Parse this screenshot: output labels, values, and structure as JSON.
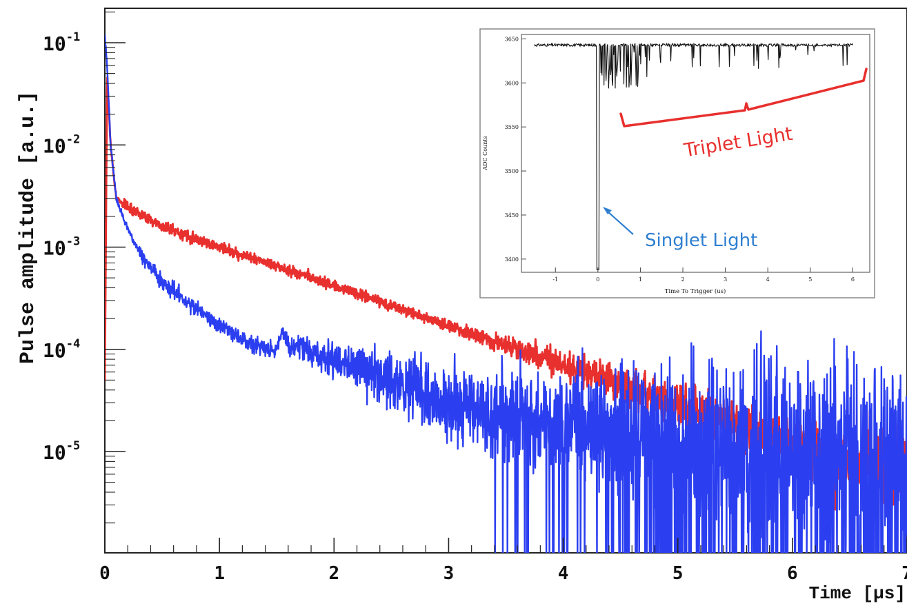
{
  "chart_data": [
    {
      "type": "line",
      "title": "",
      "xlabel": "Time [µs]",
      "ylabel": "Pulse amplitude [a.u.]",
      "xlim": [
        0,
        7
      ],
      "ylim": [
        1e-06,
        0.2
      ],
      "yscale": "log",
      "grid": false,
      "x_ticks": [
        0,
        1,
        2,
        3,
        4,
        5,
        6,
        7
      ],
      "x_tick_labels": [
        "0",
        "1",
        "2",
        "3",
        "4",
        "5",
        "6",
        "7"
      ],
      "y_ticks": [
        0.1,
        0.01,
        0.001,
        0.0001,
        1e-05
      ],
      "y_tick_labels": [
        {
          "base": "10",
          "exp": "-1"
        },
        {
          "base": "10",
          "exp": "-2"
        },
        {
          "base": "10",
          "exp": "-3"
        },
        {
          "base": "10",
          "exp": "-4"
        },
        {
          "base": "10",
          "exp": "-5"
        }
      ],
      "series": [
        {
          "color": "#e8302e",
          "x": [
            0.0,
            0.02,
            0.05,
            0.1,
            0.2,
            0.5,
            1.0,
            1.5,
            2.0,
            2.5,
            3.0,
            3.5,
            4.0,
            4.5,
            5.0,
            5.5,
            6.0,
            6.5,
            7.0
          ],
          "values": [
            5e-05,
            0.05,
            0.01,
            0.003,
            0.0025,
            0.0016,
            0.001,
            0.00065,
            0.00042,
            0.00027,
            0.00017,
            0.00011,
            7e-05,
            4.5e-05,
            2.8e-05,
            1.8e-05,
            1.2e-05,
            8e-06,
            6e-06
          ]
        },
        {
          "color": "#2b3ff0",
          "x": [
            0.0,
            0.02,
            0.05,
            0.1,
            0.2,
            0.3,
            0.5,
            0.8,
            1.0,
            1.3,
            1.5,
            1.55,
            1.6,
            2.0,
            2.5,
            3.0,
            3.5,
            4.0,
            4.5,
            5.0,
            5.5,
            6.0,
            7.0
          ],
          "values": [
            0.12,
            0.06,
            0.01,
            0.003,
            0.0015,
            0.0009,
            0.00045,
            0.00025,
            0.00017,
            0.00011,
            0.0001,
            0.00016,
            0.00011,
            8e-05,
            5e-05,
            3e-05,
            2.2e-05,
            1.8e-05,
            1.6e-05,
            1.4e-05,
            1.3e-05,
            1.2e-05,
            1.1e-05
          ]
        }
      ]
    },
    {
      "type": "line",
      "title": "",
      "xlabel": "Time To Trigger (us)",
      "ylabel": "ADC Counts",
      "xlim": [
        -1.8,
        6.4
      ],
      "ylim": [
        3385,
        3655
      ],
      "x_ticks": [
        -1,
        0,
        1,
        2,
        3,
        4,
        5,
        6
      ],
      "x_tick_labels": [
        "-1",
        "0",
        "1",
        "2",
        "3",
        "4",
        "5",
        "6"
      ],
      "y_ticks": [
        3650,
        3600,
        3550,
        3500,
        3450,
        3400
      ],
      "y_tick_labels": [
        "3650",
        "3600",
        "3550",
        "3500",
        "3450",
        "3400"
      ],
      "baseline": 3643,
      "series": [
        {
          "color": "#111111",
          "x": [
            -1.5,
            -0.02,
            0.0,
            0.02,
            0.1,
            0.15,
            0.25,
            0.35,
            0.5,
            0.6,
            0.8,
            1.0,
            1.5,
            2.0,
            2.5,
            3.0,
            3.5,
            4.0,
            4.5,
            5.0,
            5.5,
            6.0
          ],
          "values": [
            3643,
            3643,
            3388,
            3643,
            3610,
            3643,
            3600,
            3643,
            3615,
            3643,
            3585,
            3643,
            3625,
            3643,
            3630,
            3643,
            3628,
            3643,
            3632,
            3643,
            3633,
            3643
          ]
        }
      ],
      "annotations": [
        {
          "text": "Triplet Light",
          "color": "#e8302e"
        },
        {
          "text": "Singlet Light",
          "color": "#2f7fd0"
        }
      ]
    }
  ]
}
